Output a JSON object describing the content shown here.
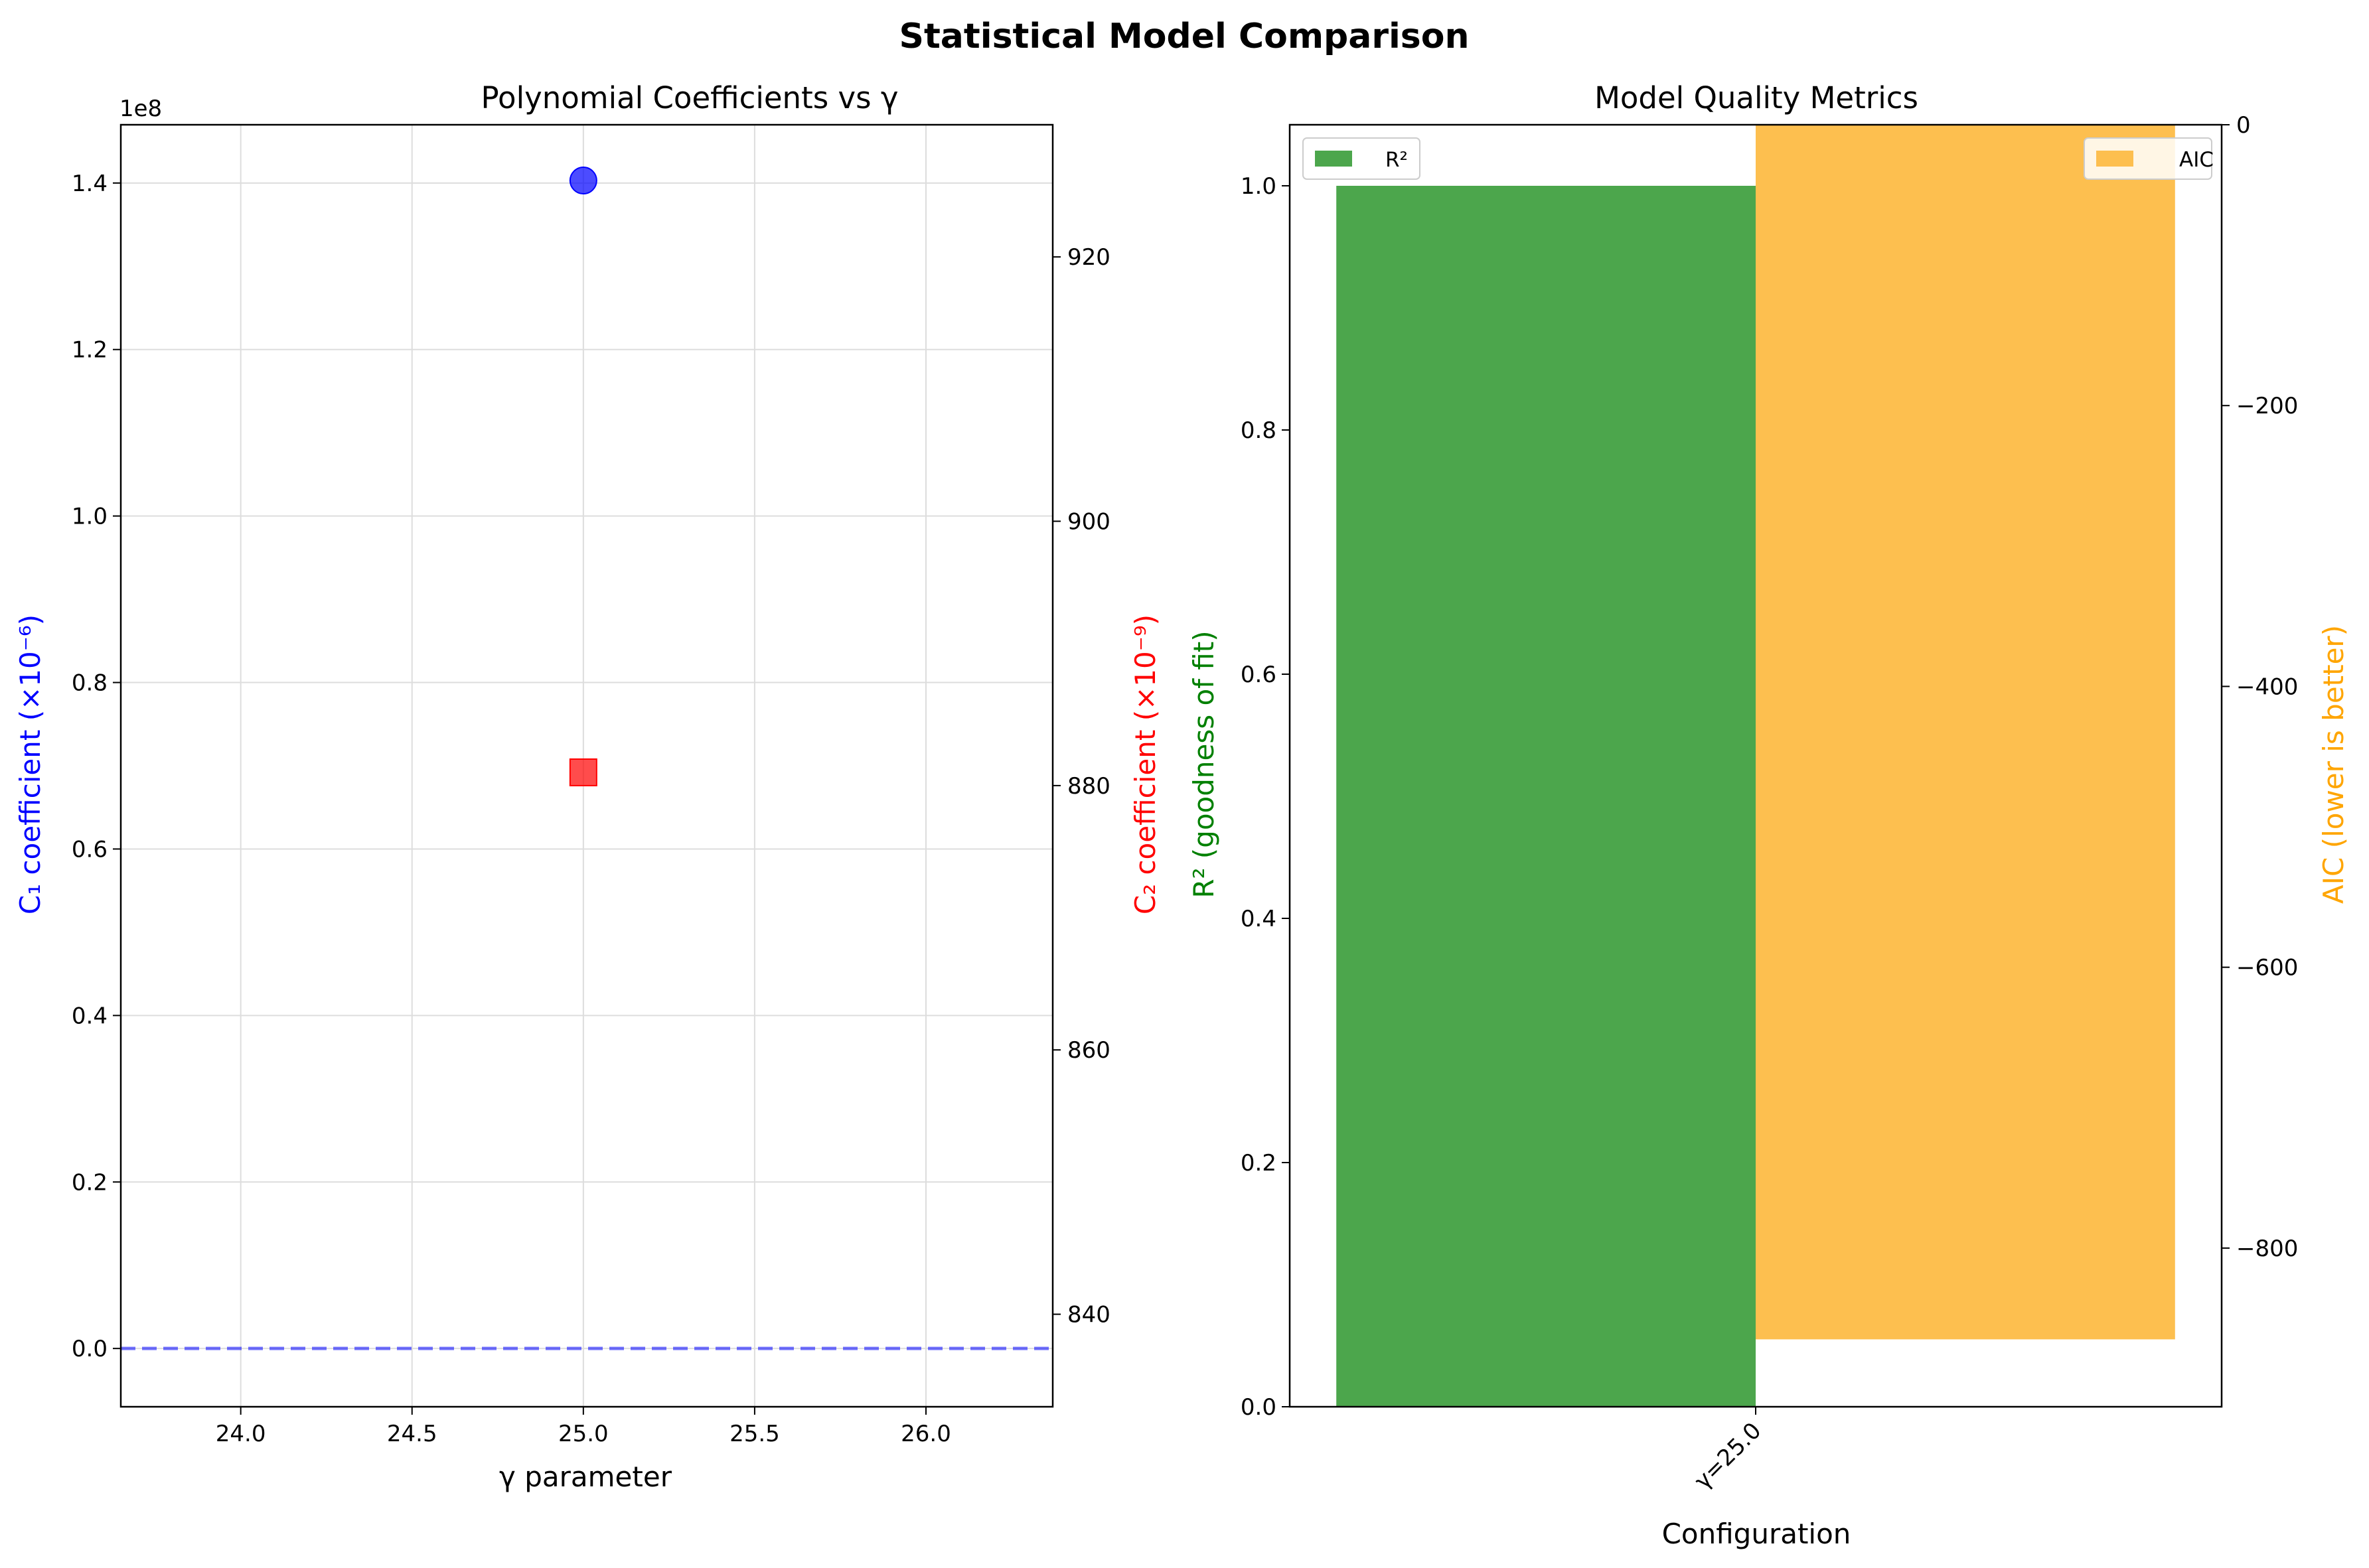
{
  "figure_title": "Statistical Model Comparison",
  "chart_data": [
    {
      "type": "scatter",
      "title": "Polynomial Coefficients vs γ",
      "xlabel": "γ parameter",
      "ylabel_left": "C₁ coefficient (×10⁻⁶)",
      "ylabel_right": "C₂ coefficient (×10⁻⁹)",
      "xlim": [
        23.65,
        26.37
      ],
      "ylim_left": [
        -7000000,
        147000000
      ],
      "ylim_right": [
        833,
        930
      ],
      "left_offset_label": "1e8",
      "x_ticks": [
        24.0,
        24.5,
        25.0,
        25.5,
        26.0
      ],
      "x_tick_labels": [
        "24.0",
        "24.5",
        "25.0",
        "25.5",
        "26.0"
      ],
      "y_left_ticks": [
        0,
        20000000,
        40000000,
        60000000,
        80000000,
        100000000,
        120000000,
        140000000
      ],
      "y_left_tick_labels": [
        "0.0",
        "0.2",
        "0.4",
        "0.6",
        "0.8",
        "1.0",
        "1.2",
        "1.4"
      ],
      "y_right_ticks": [
        840,
        860,
        880,
        900,
        920
      ],
      "y_right_tick_labels": [
        "840",
        "860",
        "880",
        "900",
        "920"
      ],
      "grid": true,
      "series": [
        {
          "axis": "left",
          "marker": "circle",
          "color": "#0000ff",
          "x": [
            25.0
          ],
          "values": [
            140300000
          ]
        },
        {
          "axis": "right",
          "marker": "square",
          "color": "#ff0000",
          "x": [
            25.0
          ],
          "values": [
            881
          ]
        }
      ],
      "reference_line": {
        "axis": "left",
        "y": 0,
        "style": "dashed",
        "color": "#0000ff"
      }
    },
    {
      "type": "bar",
      "title": "Model Quality Metrics",
      "xlabel": "Configuration",
      "ylabel_left": "R² (goodness of fit)",
      "ylabel_right": "AIC (lower is better)",
      "categories": [
        "γ=25.0"
      ],
      "ylim_left": [
        0,
        1.05
      ],
      "ylim_right": [
        -913,
        0
      ],
      "y_left_ticks": [
        0.0,
        0.2,
        0.4,
        0.6,
        0.8,
        1.0
      ],
      "y_left_tick_labels": [
        "0.0",
        "0.2",
        "0.4",
        "0.6",
        "0.8",
        "1.0"
      ],
      "y_right_ticks": [
        0,
        -200,
        -400,
        -600,
        -800
      ],
      "y_right_tick_labels": [
        "0",
        "−200",
        "−400",
        "−600",
        "−800"
      ],
      "grid": false,
      "series": [
        {
          "name": "R²",
          "axis": "left",
          "color": "#4ca64c",
          "values": [
            1.0
          ],
          "legend": "top-left"
        },
        {
          "name": "AIC",
          "axis": "right",
          "color": "#fdbf4f",
          "values": [
            -865
          ],
          "legend": "top-right"
        }
      ]
    }
  ]
}
